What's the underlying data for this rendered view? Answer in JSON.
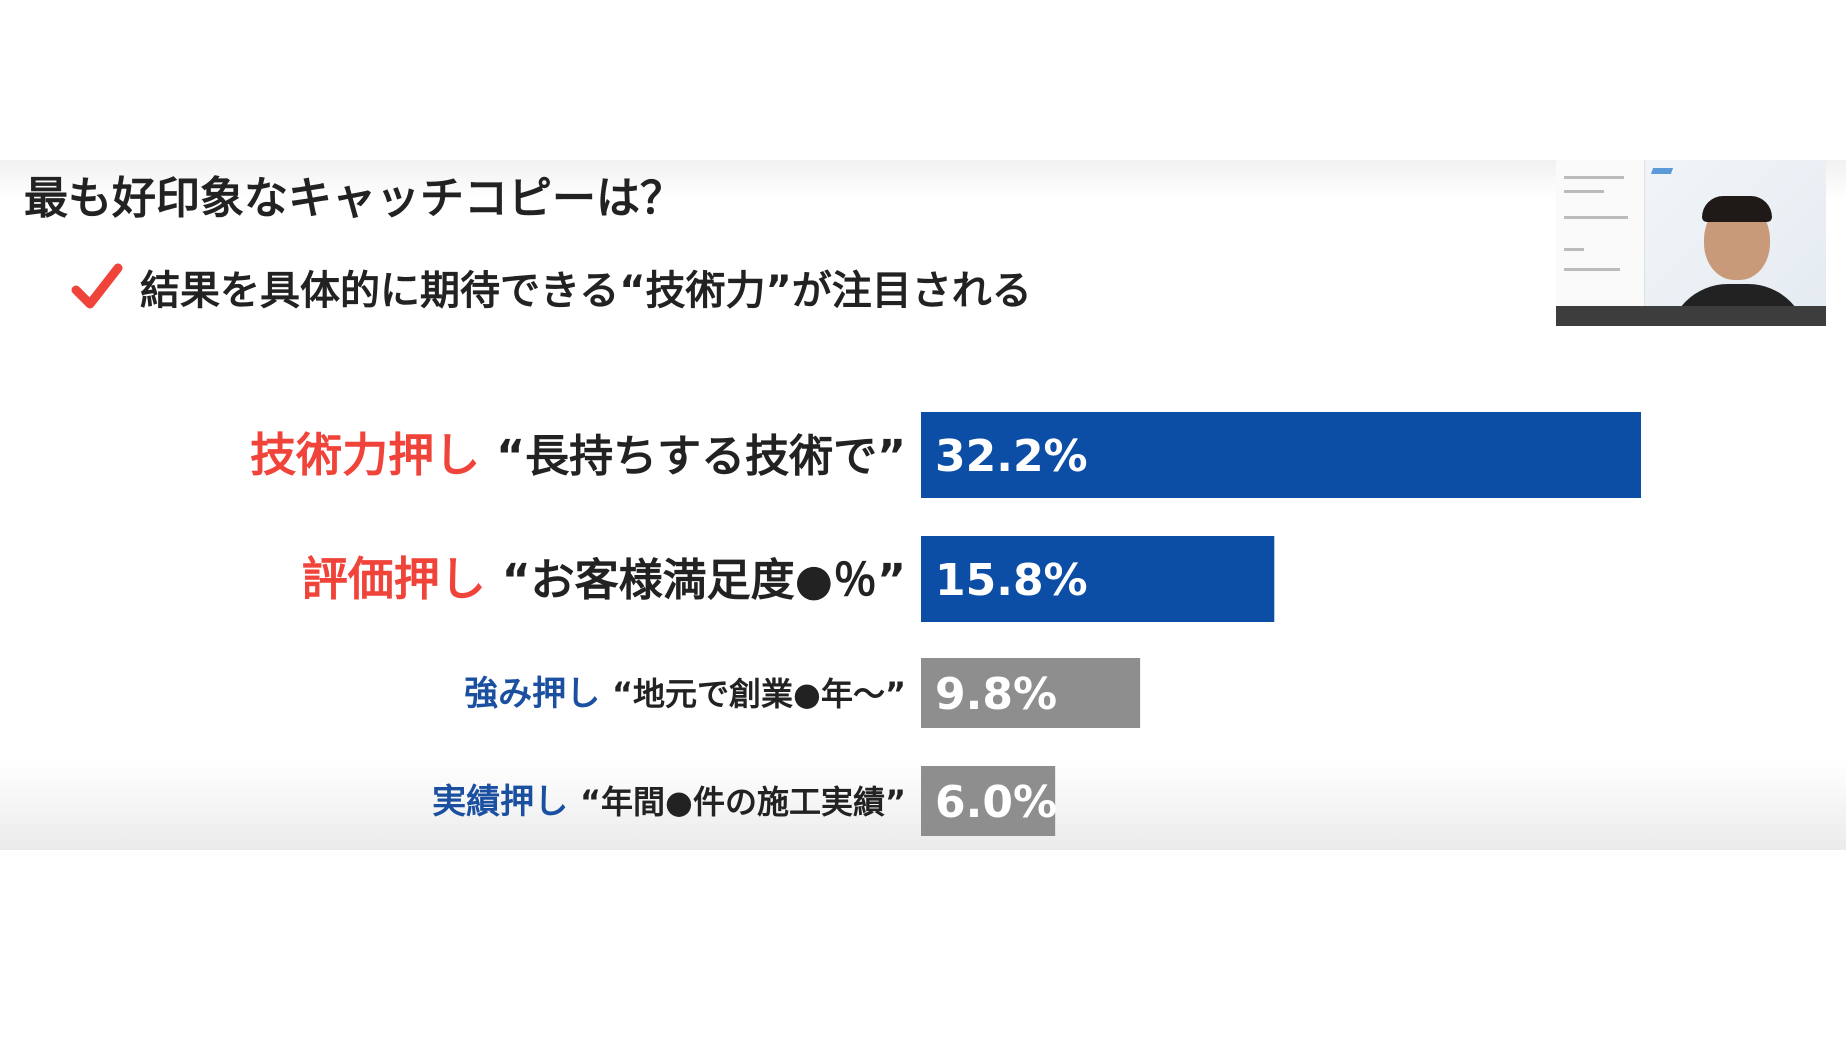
{
  "slide": {
    "question": "最も好印象なキャッチコピーは？",
    "finding": "結果を具体的に期待できる“技術力”が注目される"
  },
  "colors": {
    "highlight_bar": "#0c4da6",
    "other_bar": "#8e8e8e",
    "category_highlight": "#f0433a",
    "category_other": "#1b4fa0",
    "checkmark": "#f0433a"
  },
  "icons": {
    "check": "checkmark-icon"
  },
  "chart_data": {
    "type": "bar",
    "orientation": "horizontal",
    "title": "",
    "xlabel": "",
    "ylabel": "",
    "xlim": [
      0,
      32.2
    ],
    "categories": [
      {
        "category": "技術力押し",
        "copy": "“長持ちする技術で”",
        "emphasis": true
      },
      {
        "category": "評価押し",
        "copy": "“お客様満足度●％”",
        "emphasis": true
      },
      {
        "category": "強み押し",
        "copy": "“地元で創業●年～”",
        "emphasis": false
      },
      {
        "category": "実績押し",
        "copy": "“年間●件の施工実績”",
        "emphasis": false
      }
    ],
    "values": [
      32.2,
      15.8,
      9.8,
      6.0
    ],
    "value_labels": [
      "32.2%",
      "15.8%",
      "9.8%",
      "6.0%"
    ],
    "unit": "%",
    "grid": false,
    "legend": "none"
  }
}
